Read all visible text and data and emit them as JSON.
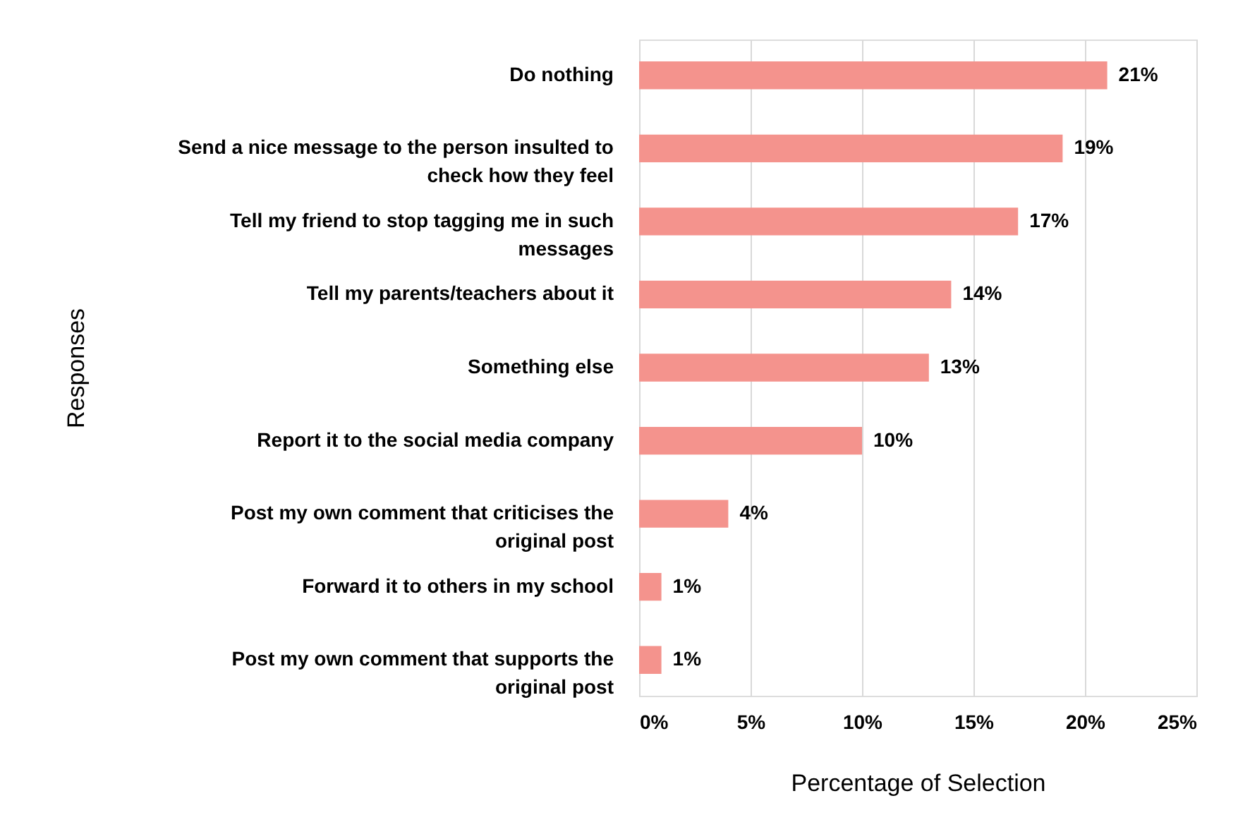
{
  "chart_data": {
    "type": "bar",
    "orientation": "horizontal",
    "ylabel": "Responses",
    "xlabel": "Percentage of Selection",
    "categories": [
      "Do nothing",
      "Send a nice message to the person insulted to check how they feel",
      "Tell my friend to stop tagging me in such messages",
      "Tell my parents/teachers about it",
      "Something else",
      "Report it to the social media company",
      "Post my own comment that criticises the original post",
      "Forward it to others in my school",
      "Post my own comment that supports the original post"
    ],
    "values": [
      21,
      19,
      17,
      14,
      13,
      10,
      4,
      1,
      1
    ],
    "value_labels": [
      "21%",
      "19%",
      "17%",
      "14%",
      "13%",
      "10%",
      "4%",
      "1%",
      "1%"
    ],
    "color": "#f4938d",
    "xlim": [
      0,
      25
    ],
    "xticks": [
      {
        "value": 0,
        "label": "0%"
      },
      {
        "value": 5,
        "label": "5%"
      },
      {
        "value": 10,
        "label": "10%"
      },
      {
        "value": 15,
        "label": "15%"
      },
      {
        "value": 20,
        "label": "20%"
      },
      {
        "value": 25,
        "label": "25%"
      }
    ],
    "grid": "x"
  }
}
